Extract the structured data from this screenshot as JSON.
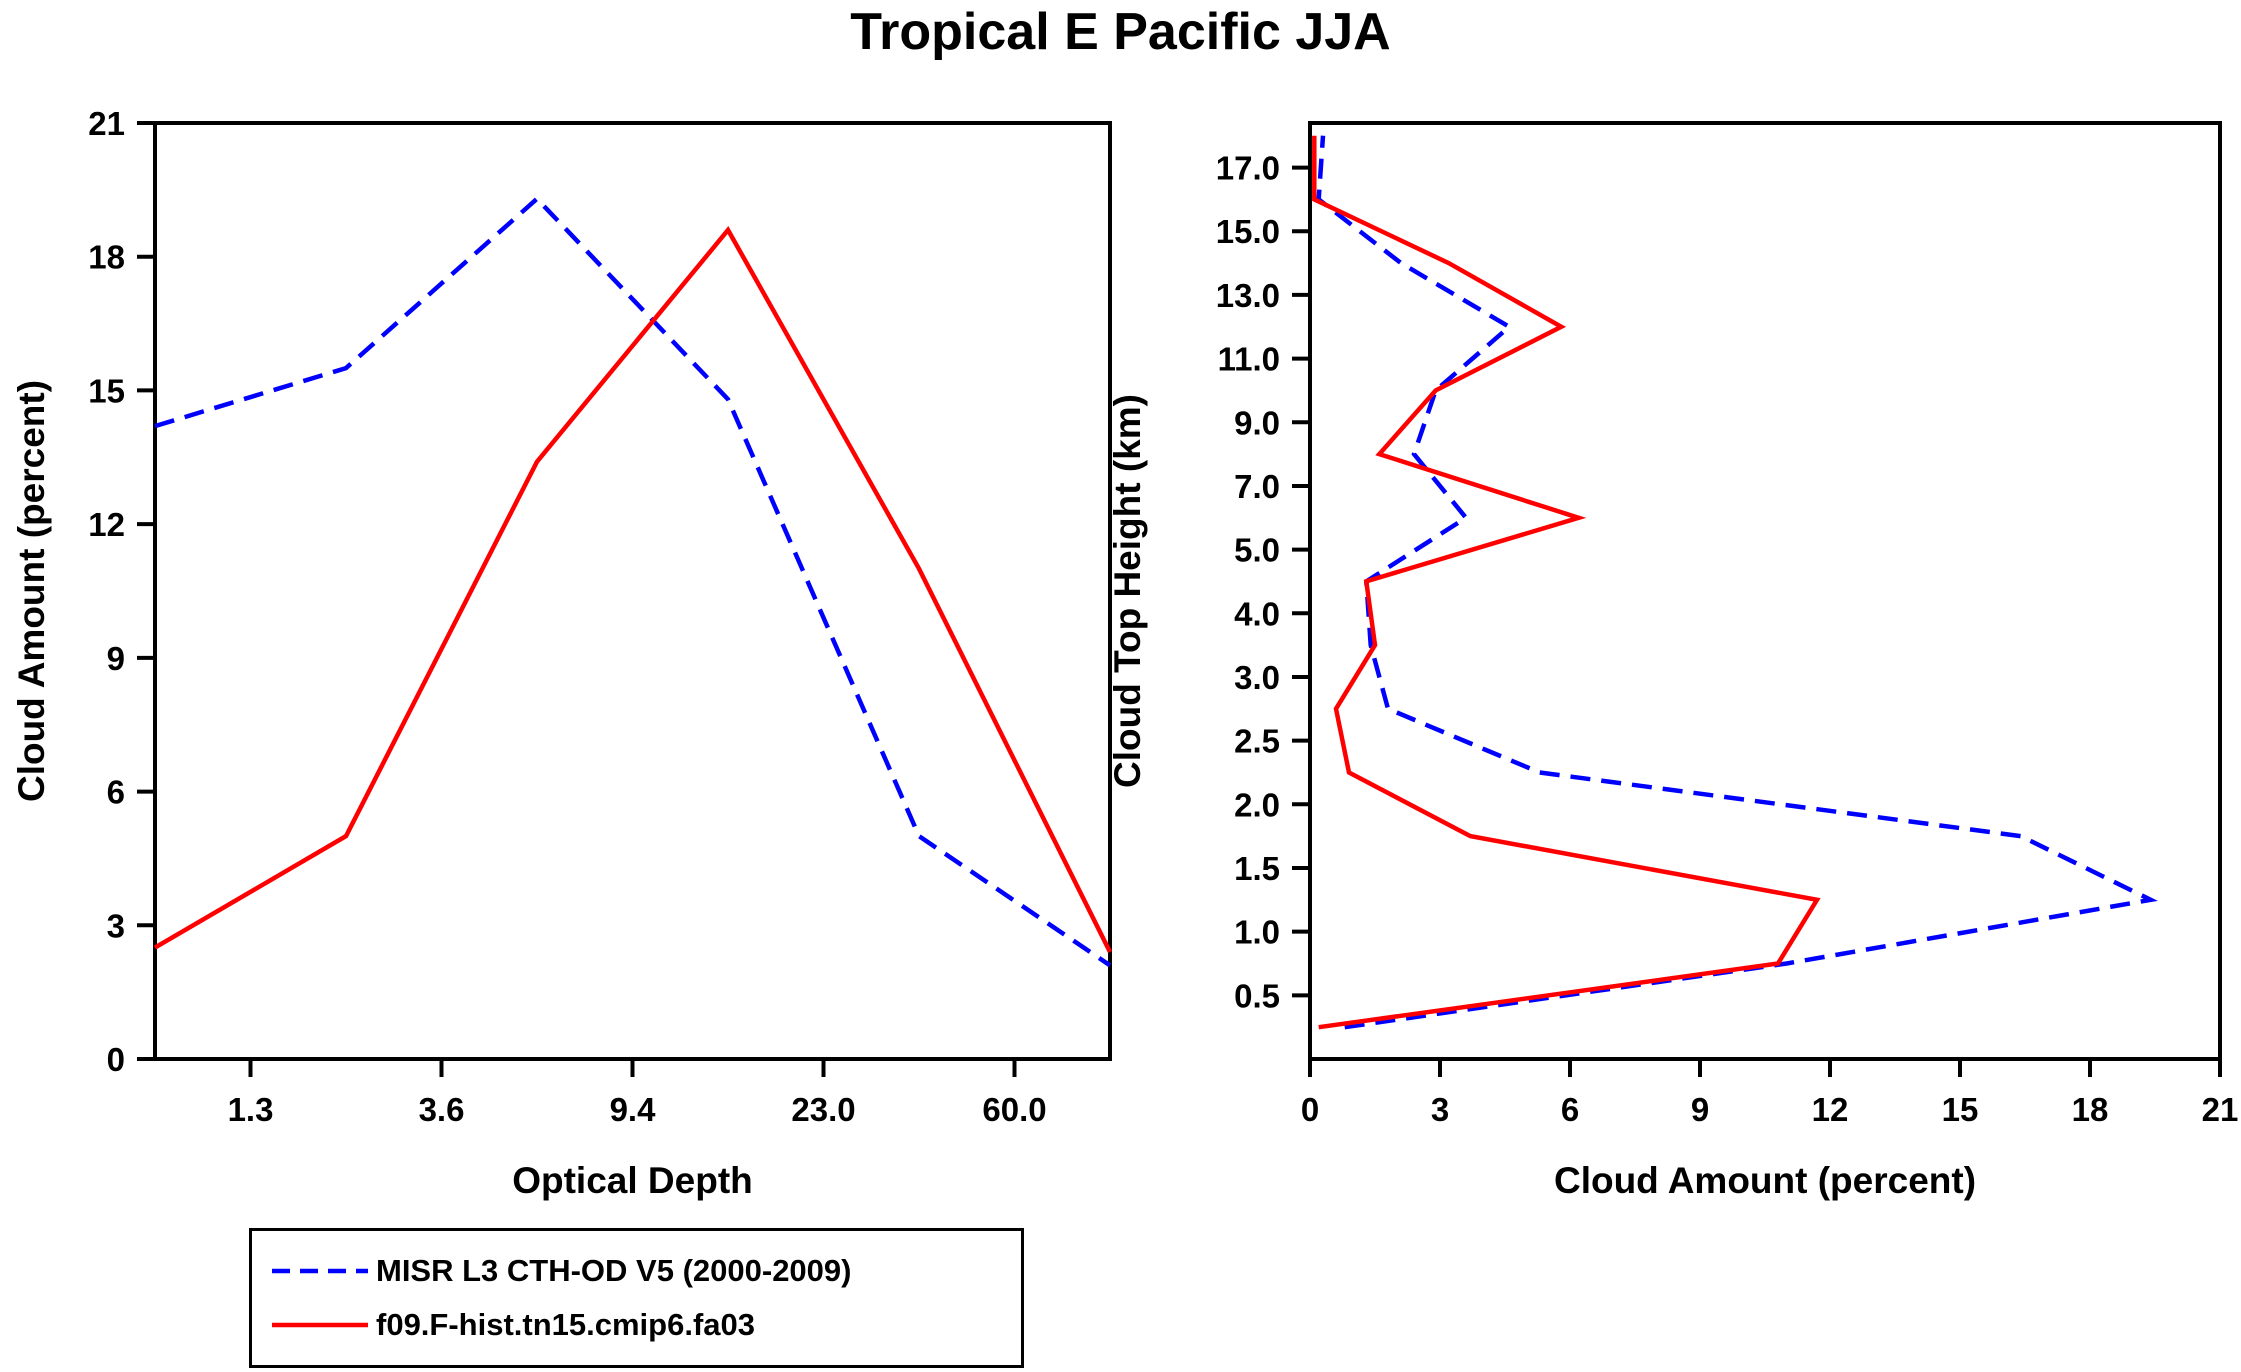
{
  "title": "Tropical E Pacific JJA",
  "colors": {
    "misr_line": "#0000ff",
    "model_line": "#ff0000",
    "axis": "#000000",
    "background": "#ffffff"
  },
  "legend": {
    "items": [
      {
        "label": "MISR L3 CTH-OD V5 (2000-2009)",
        "color": "#0000ff",
        "line_style": "dashed"
      },
      {
        "label": "f09.F-hist.tn15.cmip6.fa03",
        "color": "#ff0000",
        "line_style": "solid"
      }
    ]
  },
  "chart_data": [
    {
      "type": "line",
      "name": "cloud-amount-vs-optical-depth",
      "title": "Tropical E Pacific JJA",
      "xlabel": "Optical Depth",
      "ylabel": "Cloud Amount (percent)",
      "x_scale": "binned-optical-depth-boundaries",
      "x_tick_labels": [
        "1.3",
        "3.6",
        "9.4",
        "23.0",
        "60.0"
      ],
      "x_tick_positions": [
        1,
        2,
        3,
        4,
        5
      ],
      "x_domain": [
        0.5,
        5.5
      ],
      "x_bin_centers": [
        0.5,
        1.5,
        2.5,
        3.5,
        4.5,
        5.5
      ],
      "y_ticks": [
        0,
        3,
        6,
        9,
        12,
        15,
        18,
        21
      ],
      "ylim": [
        0,
        21
      ],
      "grid": false,
      "legend_position": "below-left",
      "series": [
        {
          "name": "MISR L3 CTH-OD V5 (2000-2009)",
          "color": "#0000ff",
          "line_style": "dashed",
          "values": [
            14.2,
            15.5,
            19.3,
            14.8,
            5.0,
            2.1
          ]
        },
        {
          "name": "f09.F-hist.tn15.cmip6.fa03",
          "color": "#ff0000",
          "line_style": "solid",
          "values": [
            2.5,
            5.0,
            13.4,
            18.6,
            11.0,
            2.4
          ]
        }
      ]
    },
    {
      "type": "line",
      "name": "cloud-amount-vs-cloud-top-height",
      "title": "Tropical E Pacific JJA",
      "xlabel": "Cloud Amount (percent)",
      "ylabel": "Cloud Top Height (km)",
      "x_ticks": [
        0,
        3,
        6,
        9,
        12,
        15,
        18,
        21
      ],
      "xlim": [
        0,
        21
      ],
      "y_scale": "binned-height-boundaries",
      "y_tick_labels": [
        "0.5",
        "1.0",
        "1.5",
        "2.0",
        "2.5",
        "3.0",
        "4.0",
        "5.0",
        "7.0",
        "9.0",
        "11.0",
        "13.0",
        "15.0",
        "17.0"
      ],
      "y_tick_positions": [
        1,
        2,
        3,
        4,
        5,
        6,
        7,
        8,
        9,
        10,
        11,
        12,
        13,
        14
      ],
      "y_domain": [
        0,
        14.7
      ],
      "height_bin_centers_km": [
        0.25,
        0.75,
        1.25,
        1.75,
        2.25,
        2.75,
        3.5,
        4.5,
        6.0,
        8.0,
        10.0,
        12.0,
        14.0,
        16.0,
        18.0
      ],
      "y_bin_positions": [
        0.5,
        1.5,
        2.5,
        3.5,
        4.5,
        5.5,
        6.5,
        7.5,
        8.5,
        9.5,
        10.5,
        11.5,
        12.5,
        13.5,
        14.5
      ],
      "grid": false,
      "series": [
        {
          "name": "MISR L3 CTH-OD V5 (2000-2009)",
          "color": "#0000ff",
          "line_style": "dashed",
          "values": [
            0.8,
            11.0,
            19.4,
            16.4,
            5.3,
            1.8,
            1.4,
            1.3,
            3.6,
            2.4,
            2.9,
            4.6,
            2.1,
            0.2,
            0.3
          ]
        },
        {
          "name": "f09.F-hist.tn15.cmip6.fa03",
          "color": "#ff0000",
          "line_style": "solid",
          "values": [
            0.2,
            10.8,
            11.7,
            3.7,
            0.9,
            0.6,
            1.5,
            1.3,
            6.2,
            1.6,
            2.9,
            5.8,
            3.2,
            0.1,
            0.1
          ]
        }
      ]
    }
  ]
}
